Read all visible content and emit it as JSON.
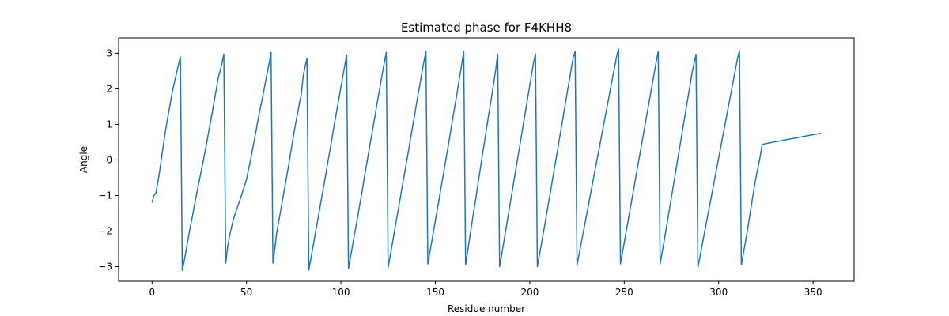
{
  "chart_data": {
    "type": "line",
    "title": "Estimated phase for F4KHH8",
    "xlabel": "Residue number",
    "ylabel": "Angle",
    "xlim": [
      -17.7,
      371.7
    ],
    "ylim": [
      -3.41,
      3.43
    ],
    "xticks": [
      0,
      50,
      100,
      150,
      200,
      250,
      300,
      350
    ],
    "yticks": [
      -3,
      -2,
      -1,
      0,
      1,
      2,
      3
    ],
    "grid": false,
    "line_color": "#1f77b4",
    "series": [
      {
        "x": [
          0,
          1,
          2,
          3,
          4,
          5,
          6,
          7,
          8,
          9,
          10,
          11,
          12,
          13,
          14,
          15,
          16,
          17,
          18,
          19,
          20,
          21,
          22,
          23,
          24,
          25,
          26,
          27,
          28,
          29,
          30,
          31,
          32,
          33,
          34,
          35,
          36,
          37,
          38,
          39,
          40,
          41,
          42,
          43,
          44,
          45,
          46,
          47,
          48,
          49,
          50,
          51,
          52,
          53,
          54,
          55,
          56,
          57,
          58,
          59,
          60,
          61,
          62,
          63,
          64,
          65,
          66,
          67,
          68,
          69,
          70,
          71,
          72,
          73,
          74,
          75,
          76,
          77,
          78,
          79,
          80,
          81,
          82,
          83,
          84,
          85,
          86,
          87,
          88,
          89,
          90,
          91,
          92,
          93,
          94,
          95,
          96,
          97,
          98,
          99,
          100,
          101,
          102,
          103,
          104,
          105,
          106,
          107,
          108,
          109,
          110,
          111,
          112,
          113,
          114,
          115,
          116,
          117,
          118,
          119,
          120,
          121,
          122,
          123,
          124,
          125,
          126,
          127,
          128,
          129,
          130,
          131,
          132,
          133,
          134,
          135,
          136,
          137,
          138,
          139,
          140,
          141,
          142,
          143,
          144,
          145,
          146,
          147,
          148,
          149,
          150,
          151,
          152,
          153,
          154,
          155,
          156,
          157,
          158,
          159,
          160,
          161,
          162,
          163,
          164,
          165,
          166,
          167,
          168,
          169,
          170,
          171,
          172,
          173,
          174,
          175,
          176,
          177,
          178,
          179,
          180,
          181,
          182,
          183,
          184,
          185,
          186,
          187,
          188,
          189,
          190,
          191,
          192,
          193,
          194,
          195,
          196,
          197,
          198,
          199,
          200,
          201,
          202,
          203,
          204,
          205,
          206,
          207,
          208,
          209,
          210,
          211,
          212,
          213,
          214,
          215,
          216,
          217,
          218,
          219,
          220,
          221,
          222,
          223,
          224,
          225,
          226,
          227,
          228,
          229,
          230,
          231,
          232,
          233,
          234,
          235,
          236,
          237,
          238,
          239,
          240,
          241,
          242,
          243,
          244,
          245,
          246,
          247,
          248,
          249,
          250,
          251,
          252,
          253,
          254,
          255,
          256,
          257,
          258,
          259,
          260,
          261,
          262,
          263,
          264,
          265,
          266,
          267,
          268,
          269,
          270,
          271,
          272,
          273,
          274,
          275,
          276,
          277,
          278,
          279,
          280,
          281,
          282,
          283,
          284,
          285,
          286,
          287,
          288,
          289,
          290,
          291,
          292,
          293,
          294,
          295,
          296,
          297,
          298,
          299,
          300,
          301,
          302,
          303,
          304,
          305,
          306,
          307,
          308,
          309,
          310,
          311,
          312,
          313,
          314,
          315,
          316,
          317,
          318,
          319,
          320,
          321,
          322,
          323,
          324,
          325,
          326,
          327,
          328,
          329,
          330,
          331,
          332,
          333,
          334,
          335,
          336,
          337,
          338,
          339,
          340,
          341,
          342,
          343,
          344,
          345,
          346,
          347,
          348,
          349,
          350,
          351,
          352,
          353,
          354
        ],
        "y": [
          -1.2,
          -1.0,
          -0.93,
          -0.65,
          -0.32,
          0.05,
          0.42,
          0.78,
          1.1,
          1.4,
          1.7,
          1.98,
          2.22,
          2.45,
          2.68,
          2.9,
          -3.1,
          -2.85,
          -2.55,
          -2.25,
          -1.95,
          -1.68,
          -1.4,
          -1.12,
          -0.85,
          -0.58,
          -0.32,
          -0.06,
          0.22,
          0.5,
          0.8,
          1.08,
          1.38,
          1.68,
          1.98,
          2.3,
          2.5,
          2.72,
          2.98,
          -2.9,
          -2.45,
          -2.15,
          -1.9,
          -1.68,
          -1.52,
          -1.36,
          -1.2,
          -1.05,
          -0.88,
          -0.72,
          -0.55,
          -0.28,
          -0.05,
          0.24,
          0.52,
          0.8,
          1.1,
          1.38,
          1.62,
          1.9,
          2.18,
          2.45,
          2.72,
          3.02,
          -2.9,
          -2.5,
          -2.05,
          -1.75,
          -1.45,
          -1.15,
          -0.85,
          -0.55,
          -0.25,
          0.08,
          0.4,
          0.72,
          1.02,
          1.3,
          1.58,
          1.85,
          2.35,
          2.62,
          2.85,
          -3.1,
          -2.8,
          -2.5,
          -2.2,
          -1.9,
          -1.6,
          -1.3,
          -1.0,
          -0.7,
          -0.4,
          -0.08,
          0.22,
          0.52,
          0.85,
          1.15,
          1.45,
          1.75,
          2.05,
          2.35,
          2.65,
          2.95,
          -3.05,
          -2.75,
          -2.45,
          -2.15,
          -1.85,
          -1.55,
          -1.25,
          -0.95,
          -0.62,
          -0.3,
          0.0,
          0.32,
          0.62,
          0.92,
          1.22,
          1.55,
          1.85,
          2.15,
          2.45,
          2.75,
          3.02,
          -3.02,
          -2.72,
          -2.42,
          -2.12,
          -1.8,
          -1.5,
          -1.2,
          -0.88,
          -0.58,
          -0.28,
          0.02,
          0.32,
          0.65,
          0.95,
          1.25,
          1.58,
          1.88,
          2.18,
          2.5,
          2.78,
          3.05,
          -2.92,
          -2.62,
          -2.32,
          -2.02,
          -1.7,
          -1.4,
          -1.1,
          -0.78,
          -0.48,
          -0.16,
          0.15,
          0.45,
          0.78,
          1.1,
          1.42,
          1.72,
          2.05,
          2.38,
          2.7,
          3.05,
          -2.95,
          -2.6,
          -2.25,
          -1.9,
          -1.55,
          -1.22,
          -0.88,
          -0.52,
          -0.18,
          0.18,
          0.5,
          0.85,
          1.2,
          1.52,
          1.85,
          2.2,
          2.55,
          2.98,
          -3.0,
          -2.7,
          -2.38,
          -2.06,
          -1.74,
          -1.42,
          -1.1,
          -0.78,
          -0.46,
          -0.14,
          0.18,
          0.5,
          0.82,
          1.14,
          1.46,
          1.78,
          2.1,
          2.42,
          2.74,
          2.98,
          -3.0,
          -2.7,
          -2.4,
          -2.1,
          -1.8,
          -1.48,
          -1.18,
          -0.88,
          -0.56,
          -0.24,
          0.06,
          0.38,
          0.7,
          1.0,
          1.32,
          1.64,
          1.96,
          2.26,
          2.58,
          2.88,
          3.04,
          -2.96,
          -2.68,
          -2.4,
          -2.12,
          -1.84,
          -1.56,
          -1.28,
          -1.0,
          -0.72,
          -0.44,
          -0.16,
          0.12,
          0.4,
          0.68,
          0.96,
          1.24,
          1.52,
          1.8,
          2.08,
          2.36,
          2.64,
          2.92,
          3.12,
          -2.92,
          -2.62,
          -2.32,
          -2.02,
          -1.72,
          -1.42,
          -1.12,
          -0.82,
          -0.52,
          -0.22,
          0.08,
          0.38,
          0.68,
          0.98,
          1.28,
          1.58,
          1.88,
          2.18,
          2.48,
          2.78,
          3.05,
          -2.92,
          -2.62,
          -2.32,
          -2.0,
          -1.68,
          -1.36,
          -1.04,
          -0.72,
          -0.4,
          -0.08,
          0.24,
          0.56,
          0.88,
          1.2,
          1.52,
          1.84,
          2.16,
          2.48,
          2.72,
          2.97,
          -3.02,
          -2.74,
          -2.46,
          -2.18,
          -1.9,
          -1.62,
          -1.34,
          -1.06,
          -0.78,
          -0.5,
          -0.22,
          0.06,
          0.34,
          0.62,
          0.9,
          1.18,
          1.46,
          1.74,
          2.02,
          2.3,
          2.58,
          2.86,
          3.07,
          -2.95,
          -2.65,
          -2.35,
          -2.05,
          -1.72,
          -1.38,
          -1.04,
          -0.72,
          -0.42,
          -0.16,
          0.1,
          0.43,
          0.45,
          0.46,
          0.47,
          0.48,
          0.49,
          0.5,
          0.51,
          0.52,
          0.53,
          0.54,
          0.55,
          0.56,
          0.57,
          0.58,
          0.59,
          0.6,
          0.61,
          0.62,
          0.63,
          0.64,
          0.65,
          0.66,
          0.67,
          0.68,
          0.69,
          0.7,
          0.71,
          0.72,
          0.73,
          0.74,
          0.75
        ]
      }
    ]
  }
}
